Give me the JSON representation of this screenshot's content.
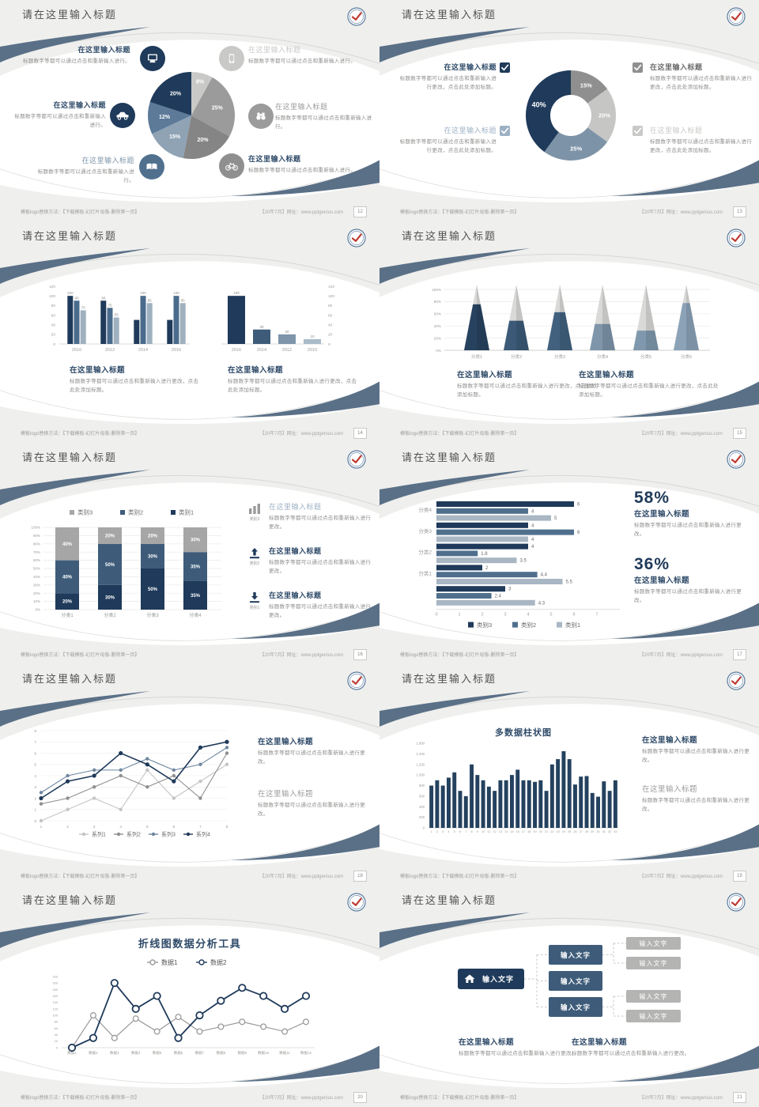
{
  "common": {
    "slide_title": "请在这里输入标题",
    "footer_left": "模板logo替换方法：【下载模板-幻灯片母版-删除第一页】",
    "footer_right": "【20年7月】网址：www.pptgenius.com",
    "heading": "在这里输入标题",
    "body_short": "标题数字等都可以通过点击和重新输入进行。",
    "body_change": "标题数字等都可以通过点击和重新输入进行更改。",
    "body_add": "标题数字等都可以通过点击和重新输入进行更改，点击此处添加标题。",
    "input_text": "输入文字"
  },
  "colors": {
    "navy": "#1f3a5a",
    "navy2": "#2e4a68",
    "slate": "#3e5c7a",
    "slate2": "#50708e",
    "bluegray": "#7e95aa",
    "bluegray2": "#9db1c4",
    "gray": "#9b9b9b",
    "gray2": "#8f8f8f",
    "lightgray": "#c9c9c7",
    "midgray": "#a6a6a6",
    "swoosh": "#5a7087",
    "body_text": "#8e8e8c",
    "axis_text": "#9a9a98",
    "grid": "#e9e9e7",
    "label_dark": "#6a6a6a",
    "leaf": "#b4b4b2",
    "red": "#bf3a30",
    "white": "#ffffff",
    "pyramid_tip": "#d9d9d7"
  },
  "slides": [
    {
      "page": "12",
      "type": "pie_callouts",
      "callouts": [
        {
          "heading": "在这里输入标题",
          "body": "标题数字等都可以通过点击和重新输入进行。",
          "icon": "monitor",
          "icon_tone": "navy",
          "tone": "navy2",
          "bold": true
        },
        {
          "heading": "在这里输入标题",
          "body": "标题数字等都可以通过点击和重新输入进行。",
          "icon": "car",
          "icon_tone": "navy",
          "tone": "navy2",
          "bold": true
        },
        {
          "heading": "在这里输入标题",
          "body": "标题数字等都可以通过点击和重新输入进行。",
          "icon": "book",
          "icon_tone": "slate2",
          "tone": "bluegray",
          "bold": false
        },
        {
          "heading": "在这里输入标题",
          "body": "标题数字等都可以通过点击和重新输入进行。",
          "icon": "phone",
          "icon_tone": "lightgray",
          "tone": "lightgray",
          "bold": false
        },
        {
          "heading": "在这里输入标题",
          "body": "标题数字等都可以通过点击和重新输入进行。",
          "icon": "binoculars",
          "icon_tone": "gray",
          "tone": "gray",
          "bold": false
        },
        {
          "heading": "在这里输入标题",
          "body": "标题数字等都可以通过点击和重新输入进行。",
          "icon": "bicycle",
          "icon_tone": "gray2",
          "tone": "navy2",
          "bold": true
        }
      ]
    },
    {
      "page": "13",
      "type": "donut_checks",
      "callouts": [
        {
          "heading": "在这里输入标题",
          "body": "标题数字等都可以通过点击和重新输入进行更改，点击此处添加标题。",
          "check_tone": "navy",
          "tone": "navy2",
          "bold": true
        },
        {
          "heading": "在这里输入标题",
          "body": "标题数字等都可以通过点击和重新输入进行更改，点击此处添加标题。",
          "check_tone": "gray2",
          "tone": "label_dark",
          "bold": true
        },
        {
          "heading": "在这里输入标题",
          "body": "标题数字等都可以通过点击和重新输入进行更改，点击此处添加标题。",
          "check_tone": "bluegray2",
          "tone": "bluegray2",
          "bold": false
        },
        {
          "heading": "在这里输入标题",
          "body": "标题数字等都可以通过点击和重新输入进行更改，点击此处添加标题。",
          "check_tone": "lightgray",
          "tone": "lightgray",
          "bold": false
        }
      ]
    },
    {
      "page": "14",
      "type": "dual_bars",
      "blocks": [
        {
          "heading": "在这里输入标题",
          "body": "标题数字等都可以通过点击和重新输入进行更改，点击此处添加标题。"
        },
        {
          "heading": "在这里输入标题",
          "body": "标题数字等都可以通过点击和重新输入进行更改，点击此处添加标题。"
        }
      ]
    },
    {
      "page": "15",
      "type": "pyramids",
      "blocks": [
        {
          "heading": "在这里输入标题",
          "body": "标题数字等都可以通过点击和重新输入进行更改，点击此处添加标题。"
        },
        {
          "heading": "在这里输入标题",
          "body": "标题数字等都可以通过点击和重新输入进行更改，点击此处添加标题。"
        }
      ]
    },
    {
      "page": "16",
      "type": "stacked",
      "callouts": [
        {
          "icon": "bar-chart",
          "icon_label": "类别3",
          "icon_tone": "gray",
          "heading": "在这里输入标题",
          "body": "标题数字等都可以通过点击和重新输入进行更改。",
          "tone": "bluegray2",
          "bold": false
        },
        {
          "icon": "upload",
          "icon_label": "类别2",
          "icon_tone": "navy",
          "heading": "在这里输入标题",
          "body": "标题数字等都可以通过点击和重新输入进行更改。",
          "tone": "navy2",
          "bold": true
        },
        {
          "icon": "download",
          "icon_label": "类别1",
          "icon_tone": "navy",
          "heading": "在这里输入标题",
          "body": "标题数字等都可以通过点击和重新输入进行更改。",
          "tone": "navy2",
          "bold": true
        }
      ]
    },
    {
      "page": "17",
      "type": "hbar_stats",
      "stats": [
        {
          "value": "58%",
          "heading": "在这里输入标题",
          "body": "标题数字等都可以通过点击和重新输入进行更改。"
        },
        {
          "value": "36%",
          "heading": "在这里输入标题",
          "body": "标题数字等都可以通过点击和重新输入进行更改。"
        }
      ]
    },
    {
      "page": "18",
      "type": "line4",
      "blocks": [
        {
          "heading": "在这里输入标题",
          "body": "标题数字等都可以通过点击和重新输入进行更改。",
          "tone": "navy2",
          "bold": true
        },
        {
          "heading": "在这里输入标题",
          "body": "标题数字等都可以通过点击和重新输入进行更改。",
          "tone": "gray",
          "bold": false
        }
      ]
    },
    {
      "page": "19",
      "type": "columns33",
      "blocks": [
        {
          "heading": "在这里输入标题",
          "body": "标题数字等都可以通过点击和重新输入进行更改。",
          "tone": "navy2",
          "bold": true
        },
        {
          "heading": "在这里输入标题",
          "body": "标题数字等都可以通过点击和重新输入进行更改。",
          "tone": "gray",
          "bold": false
        }
      ]
    },
    {
      "page": "20",
      "type": "line2",
      "blocks": []
    },
    {
      "page": "21",
      "type": "tree",
      "tree": {
        "root": "输入文字",
        "mids": [
          "输入文字",
          "输入文字",
          "输入文字"
        ],
        "leaves": [
          "输入文字",
          "输入文字",
          "输入文字",
          "输入文字"
        ]
      },
      "blocks": [
        {
          "heading": "在这里输入标题",
          "body": "标题数字等都可以通过点击和重新输入进行更改。"
        },
        {
          "heading": "在这里输入标题",
          "body": "标题数字等都可以通过点击和重新输入进行更改。"
        }
      ]
    }
  ],
  "chart_data": [
    {
      "slide": 1,
      "type": "pie",
      "labels": [
        "8%",
        "25%",
        "20%",
        "15%",
        "12%",
        "20%"
      ],
      "values": [
        8,
        25,
        20,
        15,
        12,
        20
      ],
      "colors": [
        "#c9c9c7",
        "#9b9b9b",
        "#858585",
        "#8fa3b5",
        "#5d7a99",
        "#1f3a5a"
      ]
    },
    {
      "slide": 2,
      "type": "pie",
      "donut": true,
      "labels": [
        "15%",
        "20%",
        "25%",
        "40%"
      ],
      "values": [
        15,
        20,
        25,
        40
      ],
      "colors": [
        "#8f8f8f",
        "#c6c6c4",
        "#7d93a8",
        "#1f3a5a"
      ]
    },
    {
      "slide": 3,
      "position": "left",
      "type": "bar",
      "categories": [
        "2010",
        "2012",
        "2014",
        "2016"
      ],
      "series": [
        {
          "name": "series1",
          "values": [
            100,
            90,
            50,
            50
          ]
        },
        {
          "name": "series2",
          "values": [
            90,
            75,
            100,
            100
          ]
        },
        {
          "name": "series3",
          "values": [
            70,
            55,
            85,
            85
          ]
        }
      ],
      "bar_labels": [
        [
          "100",
          "90",
          "70"
        ],
        [
          "90",
          "75",
          "55"
        ],
        [
          null,
          "100",
          "85"
        ],
        [
          null,
          "100",
          "85"
        ]
      ],
      "ylim": [
        0,
        120
      ],
      "ytick_step": 20,
      "colors": [
        "#1f3a5a",
        "#4a6b8c",
        "#9fb0bf"
      ]
    },
    {
      "slide": 3,
      "position": "right",
      "type": "bar",
      "categories": [
        "2016",
        "2014",
        "2012",
        "2010"
      ],
      "values": [
        100,
        30,
        20,
        10
      ],
      "bar_labels": [
        "100",
        "30",
        "20",
        "10"
      ],
      "ylim": [
        0,
        120
      ],
      "ytick_step": 20,
      "axis_side": "right",
      "colors": [
        "#1f3a5a",
        "#3e5c7a",
        "#7e95aa",
        "#a9bac9"
      ]
    },
    {
      "slide": 4,
      "type": "bar",
      "variant": "pyramid",
      "categories": [
        "分类1",
        "分类2",
        "分类3",
        "分类4",
        "分类5",
        "分类6"
      ],
      "values": [
        70,
        45,
        58,
        40,
        30,
        72
      ],
      "ylim": [
        0,
        100
      ],
      "ytick_step": 20,
      "ytick_suffix": "%",
      "colors": [
        "#27425f",
        "#3c5a77",
        "#41617f",
        "#7e95aa",
        "#7f98ad",
        "#8ba2b7"
      ]
    },
    {
      "slide": 5,
      "type": "bar",
      "variant": "stacked-100",
      "categories": [
        "分类1",
        "分类2",
        "分类3",
        "分类4"
      ],
      "series": [
        {
          "name": "类别1",
          "values": [
            20,
            30,
            50,
            35
          ],
          "color": "#1f3a5a"
        },
        {
          "name": "类别2",
          "values": [
            40,
            50,
            30,
            35
          ],
          "color": "#3e5c7a"
        },
        {
          "name": "类别3",
          "values": [
            40,
            20,
            20,
            30
          ],
          "color": "#a6a6a6"
        }
      ],
      "legend": [
        "类别3",
        "类别2",
        "类别1"
      ],
      "ylim": [
        0,
        100
      ],
      "ytick_step": 10,
      "ytick_suffix": "%"
    },
    {
      "slide": 6,
      "type": "bar",
      "variant": "horizontal",
      "categories": [
        "分类4",
        "分类3",
        "分类2",
        "分类1",
        ""
      ],
      "series": [
        {
          "name": "类别3",
          "values": [
            6,
            4,
            4,
            2,
            3
          ],
          "color": "#1f3a5a"
        },
        {
          "name": "类别2",
          "values": [
            4,
            6,
            1.8,
            4.4,
            2.4
          ],
          "color": "#4f6f8d"
        },
        {
          "name": "类别1",
          "values": [
            5,
            4,
            3.5,
            5.5,
            4.3
          ],
          "color": "#a9b6c3"
        }
      ],
      "legend": [
        "类别3",
        "类别2",
        "类别1"
      ],
      "xlim": [
        0,
        7
      ],
      "xtick_step": 1
    },
    {
      "slide": 7,
      "type": "line",
      "x": [
        1,
        2,
        3,
        4,
        5,
        6,
        7,
        8
      ],
      "series": [
        {
          "name": "系列1",
          "values": [
            0,
            1,
            2,
            1,
            4.5,
            2,
            3.5,
            5
          ],
          "color": "#c4c4c4"
        },
        {
          "name": "系列2",
          "values": [
            1.5,
            2,
            3,
            4,
            3,
            4,
            2,
            6
          ],
          "color": "#8f8f8f"
        },
        {
          "name": "系列3",
          "values": [
            2.5,
            4,
            4.5,
            4.5,
            5.5,
            4.5,
            5,
            6.5
          ],
          "color": "#6e87a0"
        },
        {
          "name": "系列4",
          "values": [
            2,
            3.5,
            4,
            6,
            5,
            3.5,
            6.5,
            7
          ],
          "color": "#1f3a5a"
        }
      ],
      "ylim": [
        0,
        8
      ],
      "ytick_step": 1
    },
    {
      "slide": 8,
      "type": "bar",
      "title": "多数据柱状图",
      "categories": [
        "1",
        "2",
        "3",
        "4",
        "5",
        "6",
        "7",
        "8",
        "9",
        "10",
        "11",
        "12",
        "13",
        "14",
        "15",
        "16",
        "17",
        "18",
        "19",
        "20",
        "21",
        "22",
        "23",
        "24",
        "25",
        "26",
        "27",
        "28",
        "29",
        "30",
        "31",
        "32",
        "33"
      ],
      "values": [
        800,
        900,
        800,
        950,
        1050,
        700,
        600,
        1200,
        1000,
        900,
        780,
        700,
        900,
        900,
        1000,
        1100,
        900,
        900,
        870,
        900,
        700,
        1200,
        1300,
        1450,
        1300,
        820,
        970,
        980,
        660,
        590,
        880,
        700,
        900
      ],
      "ylim": [
        0,
        1600
      ],
      "ytick_step": 200,
      "color": "#24425f"
    },
    {
      "slide": 9,
      "type": "line",
      "title": "折线图数据分析工具",
      "categories": [
        "数据1",
        "数据2",
        "数据3",
        "数据4",
        "数据5",
        "数据6",
        "数据7",
        "数据8",
        "数据9",
        "数据10",
        "数据11",
        "数据12"
      ],
      "series": [
        {
          "name": "数据1",
          "values": [
            0,
            100,
            30,
            90,
            50,
            95,
            50,
            65,
            80,
            65,
            50,
            80
          ],
          "color": "#9a9a9a"
        },
        {
          "name": "数据2",
          "values": [
            0,
            30,
            200,
            120,
            160,
            30,
            100,
            145,
            185,
            160,
            120,
            160
          ],
          "color": "#1f3a5a"
        }
      ],
      "ylim": [
        0,
        220
      ],
      "ytick_step": 20
    }
  ]
}
